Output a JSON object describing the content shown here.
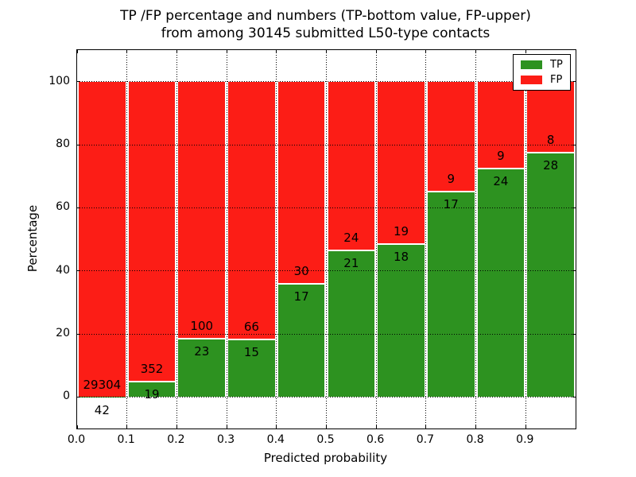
{
  "figure": {
    "title_line1": "TP /FP percentage and numbers (TP-bottom value, FP-upper)",
    "title_line2": "from among 30145 submitted L50-type contacts",
    "background_color": "#ffffff",
    "text_color": "#000000"
  },
  "chart_data": {
    "type": "bar",
    "stacked": true,
    "normalized": "each bin stacks to 100 percent",
    "title": "TP /FP percentage and numbers (TP-bottom value, FP-upper)\nfrom among 30145 submitted L50-type contacts",
    "xlabel": "Predicted probability",
    "ylabel": "Percentage",
    "total_contacts": 30145,
    "bin_edges": [
      0.0,
      0.1,
      0.2,
      0.3,
      0.4,
      0.5,
      0.6,
      0.7,
      0.8,
      0.9,
      1.0
    ],
    "series": [
      {
        "name": "TP",
        "role": "bottom",
        "color": "#2d9220",
        "counts": [
          42,
          19,
          23,
          15,
          17,
          21,
          18,
          17,
          24,
          28
        ]
      },
      {
        "name": "FP",
        "role": "upper",
        "color": "#fc1d16",
        "counts": [
          29304,
          352,
          100,
          66,
          30,
          24,
          19,
          9,
          9,
          8
        ]
      }
    ],
    "tp_percent": [
      0.14,
      5.12,
      18.7,
      18.52,
      36.17,
      46.67,
      48.65,
      65.38,
      72.73,
      77.78
    ],
    "xtick_labels": [
      "0.0",
      "0.1",
      "0.2",
      "0.3",
      "0.4",
      "0.5",
      "0.6",
      "0.7",
      "0.8",
      "0.9"
    ],
    "xtick_values": [
      0.0,
      0.1,
      0.2,
      0.3,
      0.4,
      0.5,
      0.6,
      0.7,
      0.8,
      0.9
    ],
    "ytick_labels": [
      "0",
      "20",
      "40",
      "60",
      "80",
      "100"
    ],
    "ytick_values": [
      0,
      20,
      40,
      60,
      80,
      100
    ],
    "xlim": [
      0.0,
      1.0
    ],
    "ylim": [
      -10,
      110
    ],
    "grid": "dotted black, on both axes, drawn over bars",
    "legend": {
      "position": "upper right",
      "entries": [
        {
          "label": "TP",
          "color": "#2d9220"
        },
        {
          "label": "FP",
          "color": "#fc1d16"
        }
      ]
    }
  }
}
